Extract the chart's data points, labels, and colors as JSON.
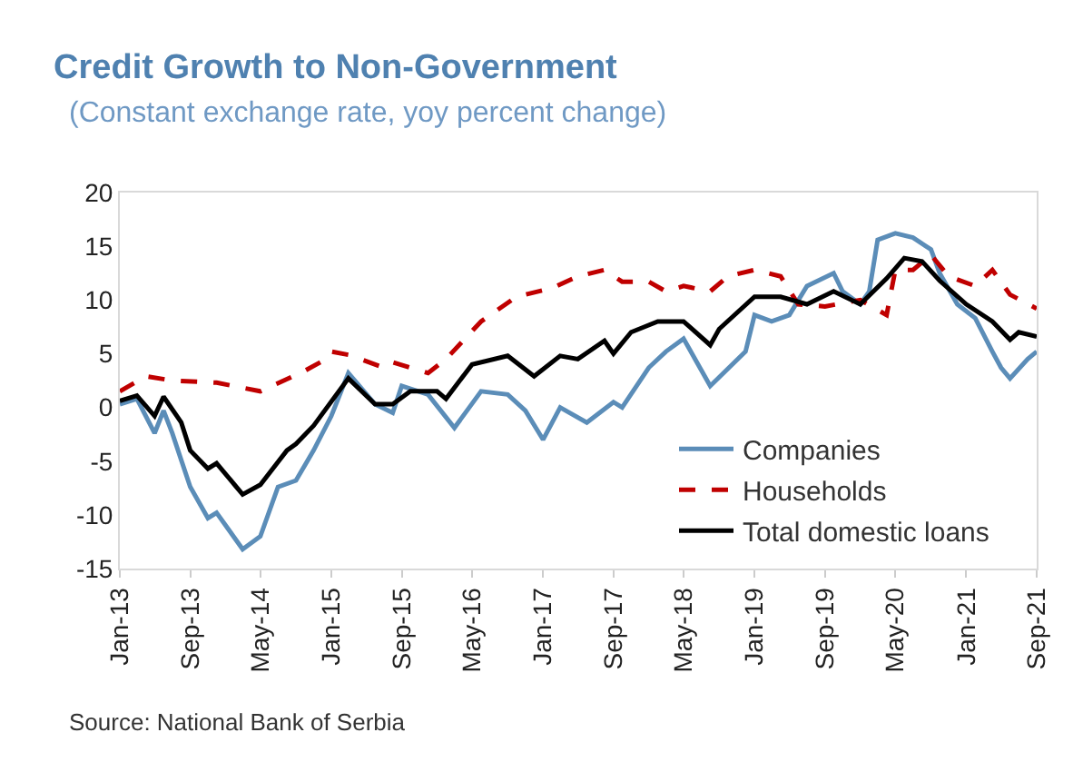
{
  "chart_data": {
    "type": "line",
    "title": "Credit Growth to Non-Government",
    "subtitle": "(Constant exchange rate, yoy percent change)",
    "annotations": [
      "Source: National Bank of Serbia"
    ],
    "xlim": [
      "2013-01",
      "2021-09"
    ],
    "xticks": [
      {
        "value": "2013-01",
        "label": "Jan-13"
      },
      {
        "value": "2013-09",
        "label": "Sep-13"
      },
      {
        "value": "2014-05",
        "label": "May-14"
      },
      {
        "value": "2015-01",
        "label": "Jan-15"
      },
      {
        "value": "2015-09",
        "label": "Sep-15"
      },
      {
        "value": "2016-05",
        "label": "May-16"
      },
      {
        "value": "2017-01",
        "label": "Jan-17"
      },
      {
        "value": "2017-09",
        "label": "Sep-17"
      },
      {
        "value": "2018-05",
        "label": "May-18"
      },
      {
        "value": "2019-01",
        "label": "Jan-19"
      },
      {
        "value": "2019-09",
        "label": "Sep-19"
      },
      {
        "value": "2020-05",
        "label": "May-20"
      },
      {
        "value": "2021-01",
        "label": "Jan-21"
      },
      {
        "value": "2021-09",
        "label": "Sep-21"
      }
    ],
    "ylim": [
      -15,
      20
    ],
    "yticks": [
      -15,
      -10,
      -5,
      0,
      5,
      10,
      15,
      20
    ],
    "grid": false,
    "legend": "bottom right",
    "series": [
      {
        "name": "Companies",
        "color": "#5b8db8",
        "line_style": "solid",
        "x": [
          "2013-01",
          "2013-03",
          "2013-05",
          "2013-06",
          "2013-07",
          "2013-09",
          "2013-11",
          "2013-12",
          "2014-03",
          "2014-05",
          "2014-07",
          "2014-09",
          "2014-11",
          "2015-01",
          "2015-03",
          "2015-06",
          "2015-08",
          "2015-09",
          "2015-12",
          "2016-03",
          "2016-06",
          "2016-09",
          "2016-11",
          "2017-01",
          "2017-03",
          "2017-06",
          "2017-09",
          "2017-10",
          "2018-01",
          "2018-03",
          "2018-05",
          "2018-08",
          "2018-12",
          "2019-01",
          "2019-03",
          "2019-05",
          "2019-07",
          "2019-10",
          "2019-11",
          "2020-01",
          "2020-02",
          "2020-03",
          "2020-05",
          "2020-07",
          "2020-09",
          "2020-10",
          "2020-12",
          "2021-02",
          "2021-04",
          "2021-05",
          "2021-06",
          "2021-08",
          "2021-09"
        ],
        "values": [
          0.3,
          0.8,
          -2.4,
          -0.3,
          -2.4,
          -7.4,
          -10.3,
          -9.8,
          -13.2,
          -12,
          -7.4,
          -6.8,
          -4,
          -0.8,
          3.2,
          0.3,
          -0.5,
          2,
          1.2,
          -1.9,
          1.5,
          1.2,
          -0.3,
          -3,
          0,
          -1.4,
          0.5,
          0,
          3.7,
          5.2,
          6.4,
          2,
          5.2,
          8.6,
          8,
          8.6,
          11.3,
          12.5,
          10.8,
          9.6,
          10.8,
          15.6,
          16.2,
          15.8,
          14.7,
          12.5,
          9.6,
          8.3,
          5.2,
          3.7,
          2.7,
          4.5,
          5.2
        ]
      },
      {
        "name": "Households",
        "color": "#c00000",
        "line_style": "dashed",
        "x": [
          "2013-01",
          "2013-04",
          "2013-07",
          "2013-12",
          "2014-05",
          "2014-10",
          "2014-12",
          "2015-01",
          "2015-03",
          "2015-07",
          "2015-08",
          "2015-12",
          "2016-02",
          "2016-06",
          "2016-10",
          "2017-02",
          "2017-05",
          "2017-08",
          "2017-10",
          "2018-01",
          "2018-03",
          "2018-05",
          "2018-08",
          "2018-10",
          "2019-01",
          "2019-04",
          "2019-06",
          "2019-09",
          "2020-01",
          "2020-04",
          "2020-05",
          "2020-07",
          "2020-09",
          "2020-11",
          "2021-02",
          "2021-04",
          "2021-06",
          "2021-09"
        ],
        "values": [
          1.5,
          2.9,
          2.5,
          2.3,
          1.5,
          3.4,
          4.3,
          5.2,
          4.9,
          3.7,
          4.2,
          3.2,
          4.5,
          8,
          10.3,
          11.1,
          12.2,
          12.8,
          11.7,
          11.7,
          10.8,
          11.3,
          10.8,
          12.2,
          12.8,
          12.2,
          9.6,
          9.4,
          10,
          8.6,
          12.8,
          12.8,
          14.2,
          12.2,
          11.3,
          12.8,
          10.5,
          9.2
        ]
      },
      {
        "name": "Total domestic loans",
        "color": "#000000",
        "line_style": "solid",
        "x": [
          "2013-01",
          "2013-03",
          "2013-05",
          "2013-06",
          "2013-08",
          "2013-09",
          "2013-11",
          "2013-12",
          "2014-03",
          "2014-05",
          "2014-08",
          "2014-09",
          "2014-11",
          "2015-03",
          "2015-06",
          "2015-08",
          "2015-10",
          "2016-01",
          "2016-02",
          "2016-05",
          "2016-09",
          "2016-12",
          "2017-03",
          "2017-05",
          "2017-08",
          "2017-09",
          "2017-11",
          "2018-02",
          "2018-05",
          "2018-08",
          "2018-09",
          "2019-01",
          "2019-04",
          "2019-07",
          "2019-10",
          "2020-01",
          "2020-04",
          "2020-06",
          "2020-08",
          "2020-10",
          "2021-01",
          "2021-04",
          "2021-06",
          "2021-07",
          "2021-09"
        ],
        "values": [
          0.6,
          1.1,
          -0.8,
          1,
          -1.4,
          -4,
          -5.7,
          -5.2,
          -8.1,
          -7.2,
          -4,
          -3.4,
          -1.7,
          2.7,
          0.3,
          0.3,
          1.5,
          1.5,
          0.8,
          4,
          4.8,
          2.9,
          4.8,
          4.5,
          6.2,
          5,
          7,
          8,
          8,
          5.8,
          7.3,
          10.3,
          10.3,
          9.6,
          10.8,
          9.6,
          12,
          13.9,
          13.6,
          11.8,
          9.6,
          8,
          6.3,
          7,
          6.6
        ]
      }
    ]
  }
}
